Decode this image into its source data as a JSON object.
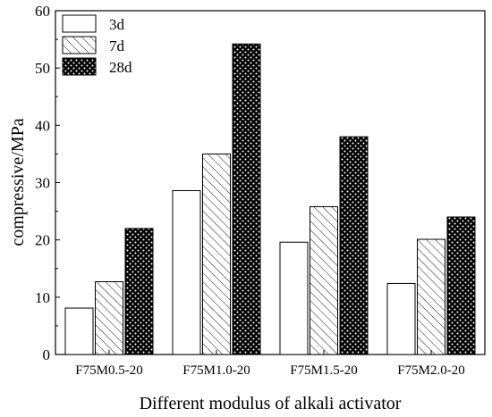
{
  "chart_data": {
    "type": "bar",
    "categories": [
      "F75M0.5-20",
      "F75M1.0-20",
      "F75M1.5-20",
      "F75M2.0-20"
    ],
    "series": [
      {
        "name": "3d",
        "values": [
          8.1,
          28.6,
          19.6,
          12.4
        ],
        "pattern": "empty"
      },
      {
        "name": "7d",
        "values": [
          12.7,
          35.0,
          25.8,
          20.1
        ],
        "pattern": "hatch"
      },
      {
        "name": "28d",
        "values": [
          22.0,
          54.2,
          38.0,
          24.0
        ],
        "pattern": "dots"
      }
    ],
    "xlabel": "Different modulus of alkali activator",
    "ylabel": "compressive/MPa",
    "ylim": [
      0,
      60
    ],
    "yticks": [
      "0",
      "10",
      "20",
      "30",
      "40",
      "50",
      "60"
    ],
    "grid": false,
    "legend_position": "top-left",
    "colors": {
      "bar_fill": "#ffffff",
      "bar_stroke": "#000000",
      "dots_fill": "#000000"
    }
  }
}
